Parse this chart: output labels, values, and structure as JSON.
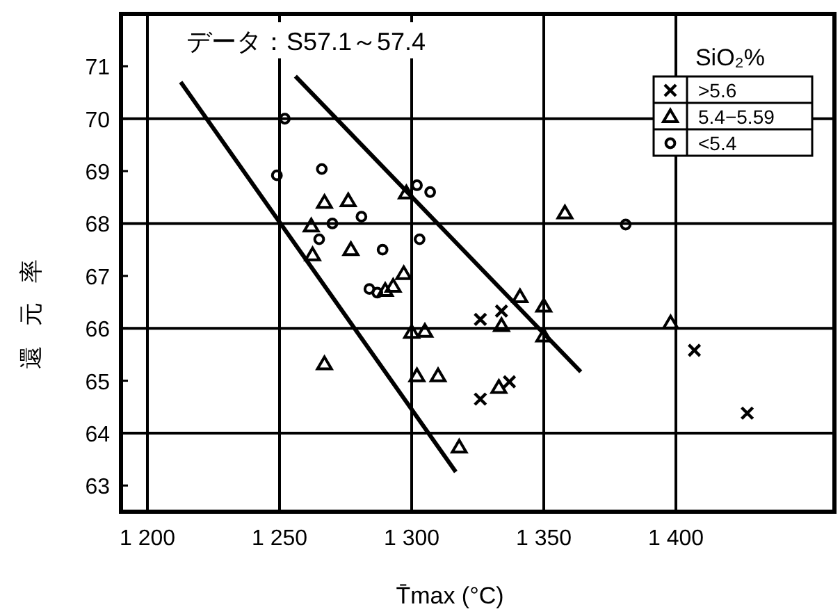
{
  "chart_data": {
    "type": "scatter",
    "xlabel": "T̄max (°C)",
    "ylabel": "還元率",
    "legend_title": "SiO₂%",
    "annotations": [
      "データ：S57.1～57.4"
    ],
    "xlim": [
      1190,
      1460
    ],
    "ylim": [
      62.5,
      72
    ],
    "xticks": [
      {
        "value": 1200,
        "label": "1 200"
      },
      {
        "value": 1250,
        "label": "1 250"
      },
      {
        "value": 1300,
        "label": "1 300"
      },
      {
        "value": 1350,
        "label": "1 350"
      },
      {
        "value": 1400,
        "label": "1 400"
      }
    ],
    "yticks": [
      63,
      64,
      65,
      66,
      67,
      68,
      69,
      70,
      71
    ],
    "grid": "x",
    "legend": "top right",
    "ref_lines": [
      {
        "axis": "y",
        "value": 64,
        "color": "#000000"
      },
      {
        "axis": "y",
        "value": 66,
        "color": "#000000"
      },
      {
        "axis": "y",
        "value": 68,
        "color": "#000000"
      },
      {
        "axis": "y",
        "value": 70,
        "color": "#000000"
      }
    ],
    "series": [
      {
        "name": ">5.6",
        "color": "#000000",
        "marker": "cross",
        "x": [
          1326,
          1326,
          1334,
          1337,
          1407,
          1427
        ],
        "values": [
          66.17,
          64.65,
          66.33,
          64.98,
          65.58,
          64.38
        ]
      },
      {
        "name": "5.4−5.59",
        "color": "#000000",
        "marker": "triangle",
        "x": [
          1298,
          1267,
          1276,
          1262,
          1277,
          1262.5,
          1297,
          1293,
          1290,
          1300,
          1305,
          1267,
          1302,
          1310,
          1318,
          1334,
          1341,
          1350,
          1350,
          1398,
          1333,
          1358
        ],
        "values": [
          68.58,
          68.4,
          68.43,
          67.95,
          67.5,
          67.4,
          67.04,
          66.8,
          66.72,
          65.92,
          65.94,
          65.32,
          65.09,
          65.09,
          63.73,
          66.05,
          66.6,
          66.42,
          65.85,
          66.1,
          64.87,
          68.2
        ]
      },
      {
        "name": "<5.4",
        "color": "#000000",
        "marker": "circle",
        "x": [
          1252,
          1249,
          1266,
          1302,
          1307,
          1270,
          1281,
          1265,
          1289,
          1303,
          1284,
          1287,
          1381
        ],
        "values": [
          70.0,
          68.92,
          69.04,
          68.73,
          68.6,
          68.0,
          68.13,
          67.7,
          67.5,
          67.7,
          66.75,
          66.68,
          67.98
        ]
      },
      {
        "type": "line",
        "color": "#000000",
        "marker": "none",
        "x": [
          1212.6,
          1316.7
        ],
        "values": [
          70.7,
          63.26
        ]
      },
      {
        "type": "line",
        "color": "#000000",
        "marker": "none",
        "x": [
          1256,
          1364
        ],
        "values": [
          70.81,
          65.17
        ]
      }
    ]
  }
}
